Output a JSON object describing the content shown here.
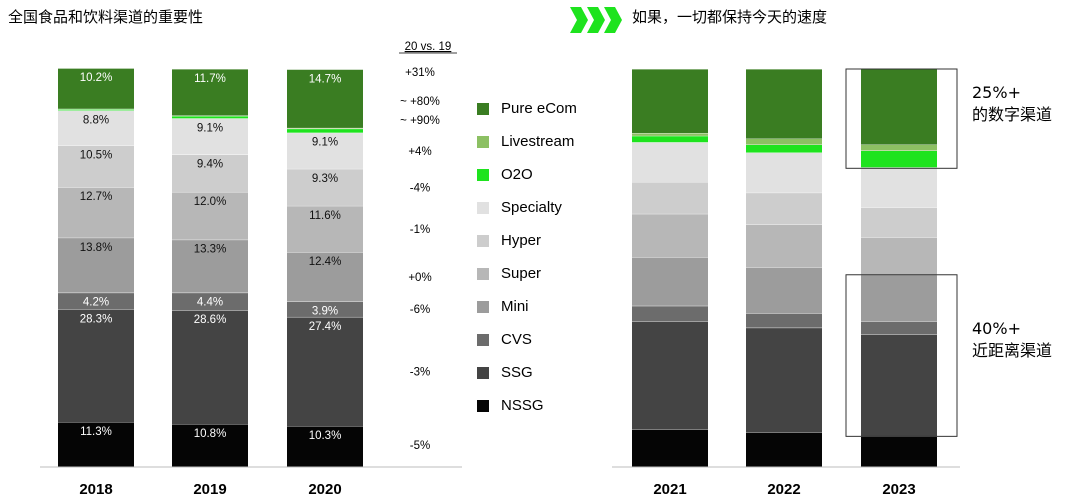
{
  "titles": {
    "left": "全国食品和饮料渠道的重要性",
    "right": "如果，一切都保持今天的速度"
  },
  "colors": {
    "Pure eCom": "#3a7d22",
    "Livestream": "#8cc063",
    "O2O": "#1ee31e",
    "Specialty": "#e1e1e1",
    "Hyper": "#cdcdcd",
    "Super": "#b7b7b7",
    "Mini": "#9c9c9c",
    "CVS": "#6c6c6c",
    "SSG": "#444444",
    "NSSG": "#050505"
  },
  "chart_data": [
    {
      "type": "stacked-bar",
      "title": "全国食品和饮料渠道的重要性",
      "categories": [
        "2018",
        "2019",
        "2020"
      ],
      "ylim": [
        0,
        100
      ],
      "unit": "%",
      "series": [
        {
          "name": "NSSG",
          "values": [
            11.3,
            10.8,
            10.3
          ]
        },
        {
          "name": "SSG",
          "values": [
            28.3,
            28.6,
            27.4
          ]
        },
        {
          "name": "CVS",
          "values": [
            4.2,
            4.4,
            3.9
          ]
        },
        {
          "name": "Mini",
          "values": [
            13.8,
            13.3,
            12.4
          ]
        },
        {
          "name": "Super",
          "values": [
            12.7,
            12.0,
            11.6
          ]
        },
        {
          "name": "Hyper",
          "values": [
            10.5,
            9.4,
            9.3
          ]
        },
        {
          "name": "Specialty",
          "values": [
            8.8,
            9.1,
            9.1
          ]
        },
        {
          "name": "O2O",
          "values": [
            0.3,
            0.6,
            1.0
          ]
        },
        {
          "name": "Livestream",
          "values": [
            0.1,
            0.1,
            0.2
          ]
        },
        {
          "name": "Pure eCom",
          "values": [
            10.2,
            11.7,
            14.7
          ]
        }
      ],
      "labeled_series": [
        "NSSG",
        "SSG",
        "CVS",
        "Mini",
        "Super",
        "Hyper",
        "Specialty",
        "Pure eCom"
      ],
      "change_header": "20 vs. 19",
      "changes": [
        {
          "series": "Pure eCom",
          "text": "+31%"
        },
        {
          "series": "Livestream",
          "text": "~ +80%"
        },
        {
          "series": "O2O",
          "text": "~ +90%"
        },
        {
          "series": "Specialty",
          "text": "+4%"
        },
        {
          "series": "Hyper",
          "text": "-4%"
        },
        {
          "series": "Super",
          "text": "-1%"
        },
        {
          "series": "Mini",
          "text": "+0%"
        },
        {
          "series": "CVS",
          "text": "-6%"
        },
        {
          "series": "SSG",
          "text": "-3%"
        },
        {
          "series": "NSSG",
          "text": "-5%"
        }
      ]
    },
    {
      "type": "stacked-bar",
      "title": "如果，一切都保持今天的速度",
      "categories": [
        "2021",
        "2022",
        "2023"
      ],
      "ylim": [
        0,
        100
      ],
      "unit": "%",
      "series": [
        {
          "name": "NSSG",
          "values": [
            9.5,
            8.7,
            7.7
          ]
        },
        {
          "name": "SSG",
          "values": [
            27.1,
            26.3,
            25.6
          ]
        },
        {
          "name": "CVS",
          "values": [
            3.9,
            3.6,
            3.3
          ]
        },
        {
          "name": "Mini",
          "values": [
            12.2,
            11.6,
            11.7
          ]
        },
        {
          "name": "Super",
          "values": [
            10.9,
            10.7,
            9.4
          ]
        },
        {
          "name": "Hyper",
          "values": [
            8.0,
            8.0,
            7.5
          ]
        },
        {
          "name": "Specialty",
          "values": [
            10.0,
            10.1,
            10.1
          ]
        },
        {
          "name": "O2O",
          "values": [
            1.6,
            2.0,
            4.2
          ]
        },
        {
          "name": "Livestream",
          "values": [
            0.7,
            1.5,
            1.5
          ]
        },
        {
          "name": "Pure eCom",
          "values": [
            16.1,
            17.5,
            19.0
          ]
        }
      ],
      "labeled_series": []
    }
  ],
  "legend": [
    "Pure eCom",
    "Livestream",
    "O2O",
    "Specialty",
    "Hyper",
    "Super",
    "Mini",
    "CVS",
    "SSG",
    "NSSG"
  ],
  "callouts": [
    {
      "line1": "25%+",
      "line2": "的数字渠道"
    },
    {
      "line1": "40%+",
      "line2": "近距离渠道"
    }
  ]
}
